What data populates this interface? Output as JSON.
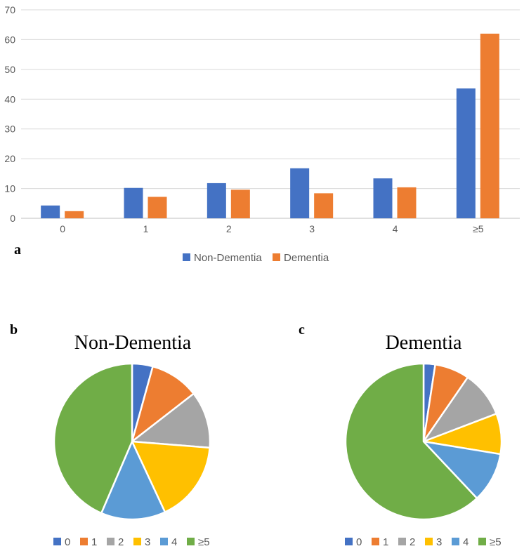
{
  "chart_data": [
    {
      "type": "bar",
      "panel_label": "a",
      "categories": [
        "0",
        "1",
        "2",
        "3",
        "4",
        "≥5"
      ],
      "series": [
        {
          "name": "Non-Dementia",
          "color": "#4472C4",
          "values": [
            4.3,
            10.2,
            11.8,
            16.8,
            13.4,
            43.6
          ]
        },
        {
          "name": "Dementia",
          "color": "#ED7D31",
          "values": [
            2.4,
            7.2,
            9.6,
            8.4,
            10.4,
            62.0
          ]
        }
      ],
      "ylim": [
        0,
        70
      ],
      "yticks": [
        0,
        10,
        20,
        30,
        40,
        50,
        60,
        70
      ],
      "grid": true,
      "legend": "bottom"
    },
    {
      "type": "pie",
      "panel_label": "b",
      "title": "Non-Dementia",
      "categories": [
        "0",
        "1",
        "2",
        "3",
        "4",
        "≥5"
      ],
      "values": [
        4.3,
        10.2,
        11.8,
        16.8,
        13.4,
        43.6
      ],
      "colors": [
        "#4472C4",
        "#ED7D31",
        "#A5A5A5",
        "#FFC000",
        "#5B9BD5",
        "#70AD47"
      ],
      "legend": "bottom"
    },
    {
      "type": "pie",
      "panel_label": "c",
      "title": "Dementia",
      "categories": [
        "0",
        "1",
        "2",
        "3",
        "4",
        "≥5"
      ],
      "values": [
        2.4,
        7.2,
        9.6,
        8.4,
        10.4,
        62.0
      ],
      "colors": [
        "#4472C4",
        "#ED7D31",
        "#A5A5A5",
        "#FFC000",
        "#5B9BD5",
        "#70AD47"
      ],
      "legend": "bottom"
    }
  ]
}
